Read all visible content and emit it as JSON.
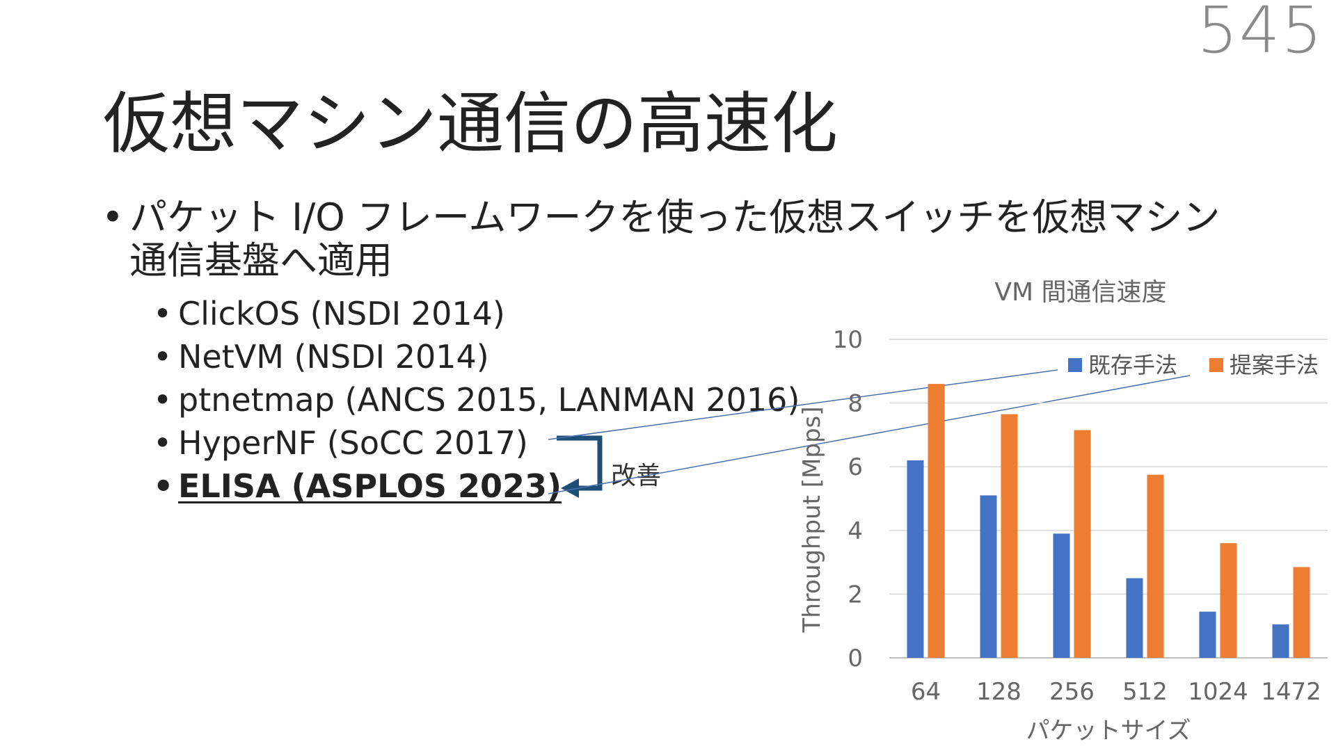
{
  "page_number": "545",
  "title": "仮想マシン通信の高速化",
  "main_bullet": "パケット I/O フレームワークを使った仮想スイッチを仮想マシン通信基盤へ適用",
  "sub_bullets": [
    "ClickOS (NSDI 2014)",
    "NetVM (NSDI 2014)",
    "ptnetmap (ANCS 2015, LANMAN 2016)",
    "HyperNF (SoCC 2017)",
    "ELISA (ASPLOS 2023)"
  ],
  "annotation": "改善",
  "colors": {
    "series1": "#4472C4",
    "series2": "#ED7D31",
    "arrow": "#1F4E79",
    "grid": "#D9D9D9"
  },
  "chart_data": {
    "type": "bar",
    "title": "VM 間通信速度",
    "xlabel": "パケットサイズ",
    "ylabel": "Throughput [Mpps]",
    "ylim": [
      0,
      10
    ],
    "yticks": [
      0,
      2,
      4,
      6,
      8,
      10
    ],
    "categories": [
      "64",
      "128",
      "256",
      "512",
      "1024",
      "1472"
    ],
    "series": [
      {
        "name": "既存手法",
        "values": [
          6.2,
          5.1,
          3.9,
          2.5,
          1.45,
          1.05
        ]
      },
      {
        "name": "提案手法",
        "values": [
          8.6,
          7.65,
          7.15,
          5.75,
          3.6,
          2.85
        ]
      }
    ],
    "legend_position": "top-right"
  }
}
